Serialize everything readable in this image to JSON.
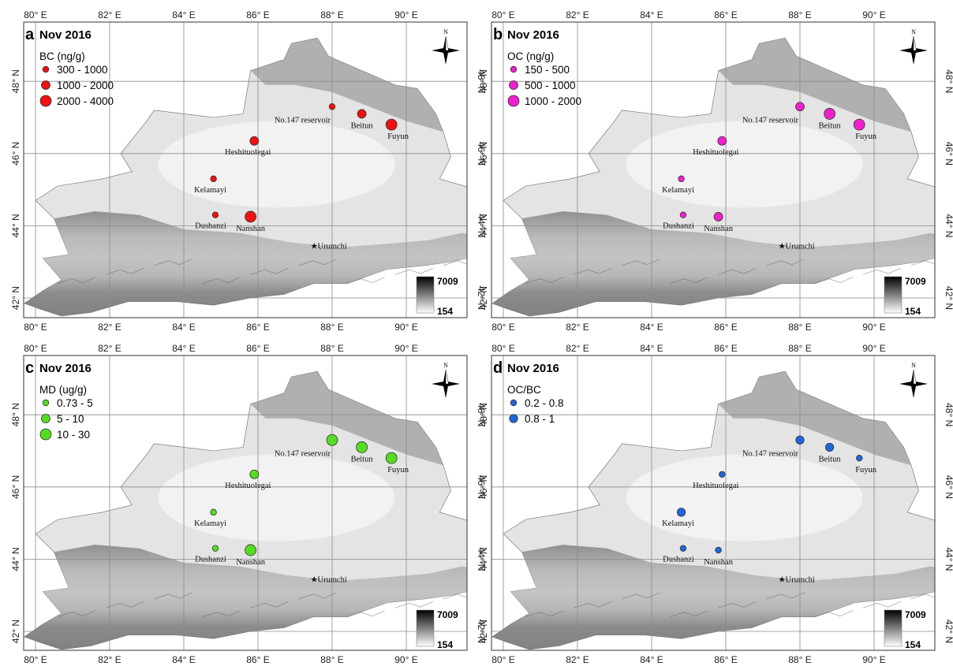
{
  "figure": {
    "lon_ticks": [
      "80° E",
      "82° E",
      "84° E",
      "86° E",
      "88° E",
      "90° E"
    ],
    "lat_ticks": [
      "42° N",
      "44° N",
      "46° N",
      "48° N"
    ],
    "north_label": "N",
    "elevation_scale": {
      "max": "7009",
      "min": "154"
    },
    "colors": {
      "background": "#ffffff",
      "grid": "#8a8a8a",
      "frame": "#333333"
    }
  },
  "sites": [
    {
      "name": "No.147 reservoir",
      "lon": 88.0,
      "lat": 47.3
    },
    {
      "name": "Beitun",
      "lon": 88.8,
      "lat": 47.1
    },
    {
      "name": "Fuyun",
      "lon": 89.6,
      "lat": 46.8
    },
    {
      "name": "Heshituolegai",
      "lon": 85.9,
      "lat": 46.35
    },
    {
      "name": "Kelamayi",
      "lon": 84.8,
      "lat": 45.3
    },
    {
      "name": "Dushanzi",
      "lon": 84.85,
      "lat": 44.3
    },
    {
      "name": "Nanshan",
      "lon": 85.8,
      "lat": 44.25
    },
    {
      "name": "Urumchi",
      "lon": 87.5,
      "lat": 43.45,
      "marker": "star"
    }
  ],
  "chart_data": [
    {
      "type": "scatter",
      "panel": "a",
      "date": "Nov 2016",
      "legend_title": "BC (ng/g)",
      "color": "#ee1111",
      "classes": [
        "300 - 1000",
        "1000 - 2000",
        "2000 - 4000"
      ],
      "site_class": [
        0,
        1,
        2,
        1,
        0,
        0,
        2
      ]
    },
    {
      "type": "scatter",
      "panel": "b",
      "date": "Nov 2016",
      "legend_title": "OC (ng/g)",
      "color": "#ee22cc",
      "classes": [
        "150 - 500",
        "500 - 1000",
        "1000 - 2000"
      ],
      "site_class": [
        1,
        2,
        2,
        1,
        0,
        0,
        1
      ]
    },
    {
      "type": "scatter",
      "panel": "c",
      "date": "Nov 2016",
      "legend_title": "MD (ug/g)",
      "color": "#55dd22",
      "classes": [
        "0.73 - 5",
        "5 - 10",
        "10 - 30"
      ],
      "site_class": [
        2,
        2,
        2,
        1,
        0,
        0,
        2
      ]
    },
    {
      "type": "scatter",
      "panel": "d",
      "date": "Nov 2016",
      "legend_title": "OC/BC",
      "color": "#1f66dd",
      "classes": [
        "0.2 - 0.8",
        "0.8 - 1"
      ],
      "site_class": [
        1,
        1,
        0,
        0,
        1,
        0,
        0
      ]
    }
  ]
}
